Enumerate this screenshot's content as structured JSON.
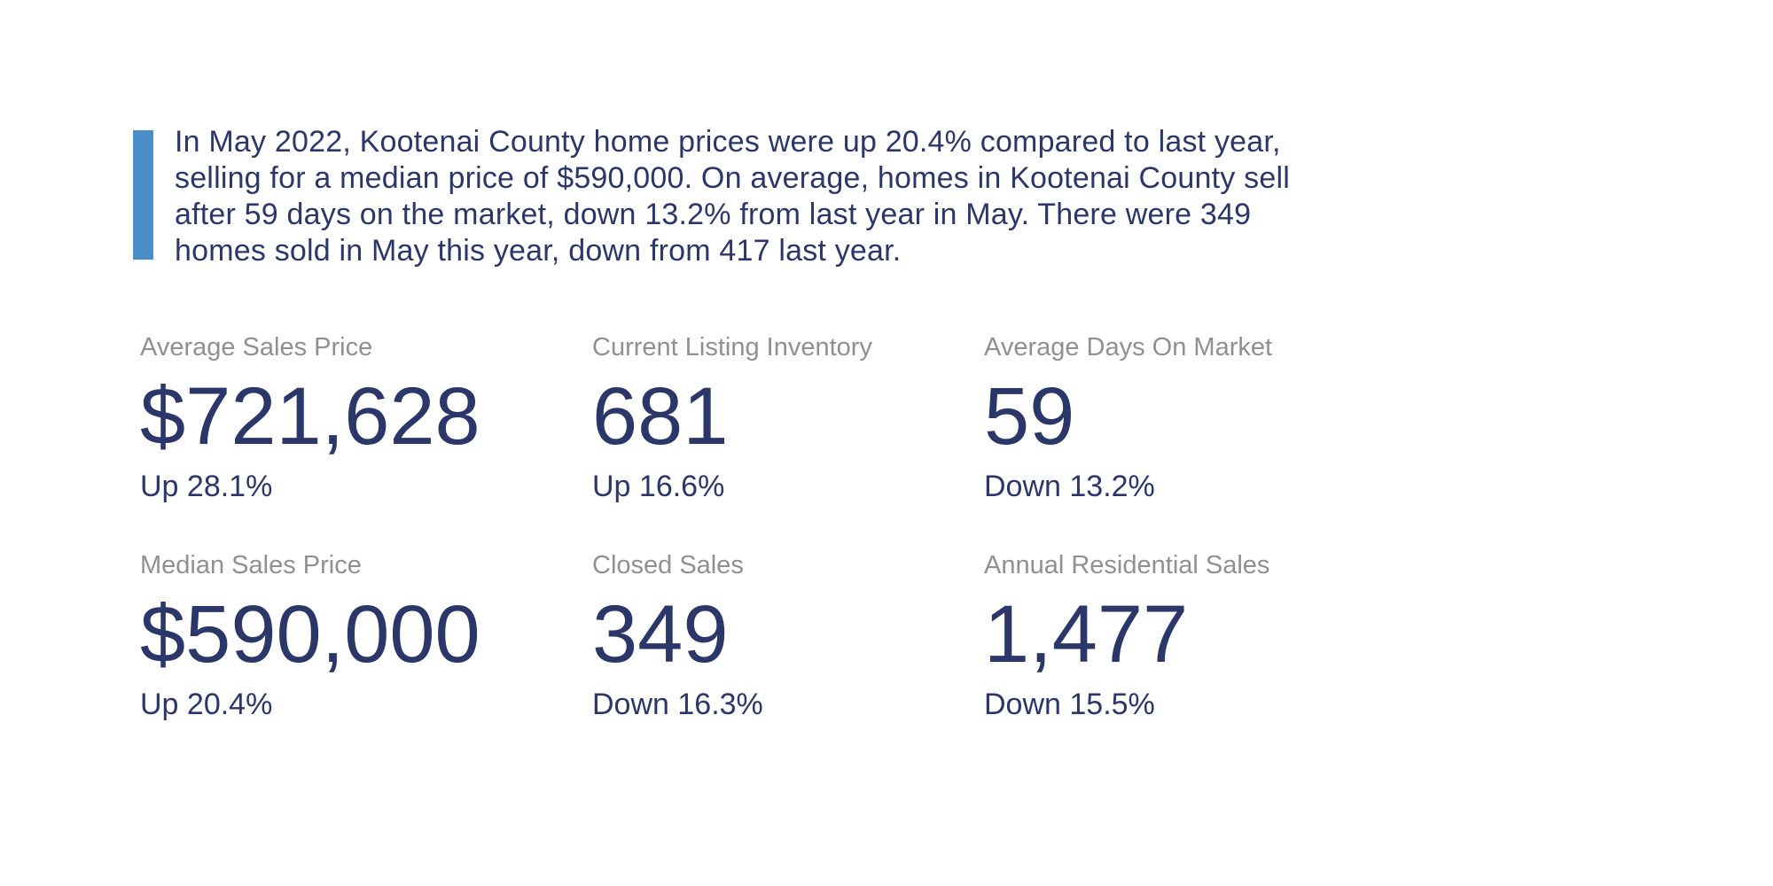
{
  "summary": {
    "accent_color": "#4c8ecb",
    "text_color": "#2b3768",
    "lines": [
      "In May 2022, Kootenai County home prices were up 20.4% compared to last year,",
      "selling for a median price of $590,000. On average, homes in Kootenai County sell",
      "after 59 days on the market, down 13.2% from last year in May. There were 349",
      "homes sold in May this year, down from 417 last year."
    ]
  },
  "stats": {
    "label_color": "#8e9093",
    "value_color": "#2b3768",
    "rows": [
      [
        {
          "label": "Average Sales Price",
          "value": "$721,628",
          "change": "Up 28.1%"
        },
        {
          "label": "Current Listing Inventory",
          "value": "681",
          "change": "Up 16.6%"
        },
        {
          "label": "Average Days On Market",
          "value": "59",
          "change": "Down 13.2%"
        }
      ],
      [
        {
          "label": "Median Sales Price",
          "value": "$590,000",
          "change": "Up 20.4%"
        },
        {
          "label": "Closed Sales",
          "value": "349",
          "change": "Down 16.3%"
        },
        {
          "label": "Annual Residential Sales",
          "value": "1,477",
          "change": "Down 15.5%"
        }
      ]
    ]
  }
}
